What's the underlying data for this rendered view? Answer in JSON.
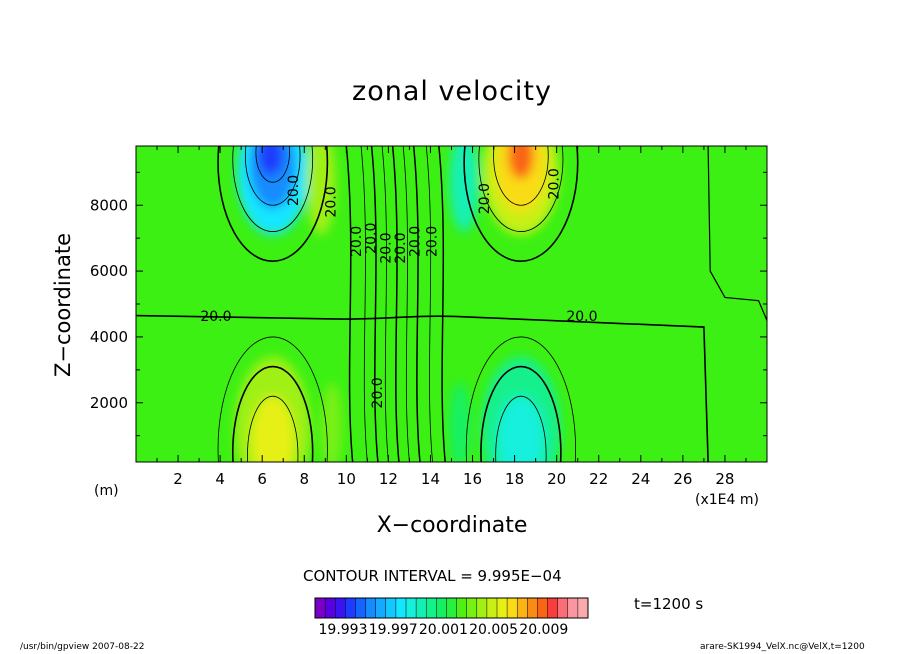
{
  "chart_data": {
    "type": "heatmap",
    "title": "zonal velocity",
    "xlabel": "X−coordinate",
    "ylabel": "Z−coordinate",
    "x_unit_left": "(m)",
    "x_unit_right": "(x1E4 m)",
    "xlim": [
      0,
      30
    ],
    "ylim": [
      200,
      9800
    ],
    "x_ticks": [
      2,
      4,
      6,
      8,
      10,
      12,
      14,
      16,
      18,
      20,
      22,
      24,
      26,
      28
    ],
    "x_tick_labels": [
      "2",
      "4",
      "6",
      "8",
      "10",
      "12",
      "14",
      "16",
      "18",
      "20",
      "22",
      "24",
      "26",
      "28"
    ],
    "y_ticks": [
      2000,
      4000,
      6000,
      8000
    ],
    "y_tick_labels": [
      "2000",
      "4000",
      "6000",
      "8000"
    ],
    "contour_interval_text": "CONTOUR INTERVAL = 9.995E−04",
    "contour_labels": [
      {
        "text": "20.0",
        "x": 3.8,
        "z": 4600,
        "angle": 0
      },
      {
        "text": "20.0",
        "x": 21.2,
        "z": 4600,
        "angle": 0
      },
      {
        "text": "20.0",
        "x": 7.5,
        "z": 8450,
        "angle": -90
      },
      {
        "text": "20.0",
        "x": 9.3,
        "z": 8100,
        "angle": -90
      },
      {
        "text": "20.0",
        "x": 16.6,
        "z": 8200,
        "angle": -90
      },
      {
        "text": "20.0",
        "x": 19.9,
        "z": 8650,
        "angle": -90
      },
      {
        "text": "20.0",
        "x": 10.5,
        "z": 6900,
        "angle": -90
      },
      {
        "text": "20.0",
        "x": 11.2,
        "z": 7000,
        "angle": -90
      },
      {
        "text": "20.0",
        "x": 11.9,
        "z": 6700,
        "angle": -90
      },
      {
        "text": "20.0",
        "x": 12.6,
        "z": 6700,
        "angle": -90
      },
      {
        "text": "20.0",
        "x": 13.3,
        "z": 6900,
        "angle": -90
      },
      {
        "text": "20.0",
        "x": 14.1,
        "z": 6900,
        "angle": -90
      },
      {
        "text": "20.0",
        "x": 11.5,
        "z": 2300,
        "angle": -90
      }
    ],
    "colorbar": {
      "colors": [
        "#7a00c8",
        "#5a00e0",
        "#3a14f0",
        "#1e3cff",
        "#1464ff",
        "#148cff",
        "#14aaff",
        "#14c8ff",
        "#14e6ff",
        "#14f0dc",
        "#14f0b4",
        "#14f08c",
        "#14f064",
        "#28f03c",
        "#50f014",
        "#78f014",
        "#a0f014",
        "#c8f014",
        "#e6f014",
        "#fadc14",
        "#fab414",
        "#fa8c14",
        "#fa6414",
        "#fa3c3c",
        "#fa6e78",
        "#fa96a0",
        "#faaaaa"
      ],
      "tick_labels": [
        "19.993",
        "19.997",
        "20.001",
        "20.005",
        "20.009"
      ]
    },
    "time_label": "t=1200 s",
    "footer_left": "/usr/bin/gpview   2007-08-22",
    "footer_right": "arare-SK1994_VelX.nc@VelX,t=1200"
  }
}
